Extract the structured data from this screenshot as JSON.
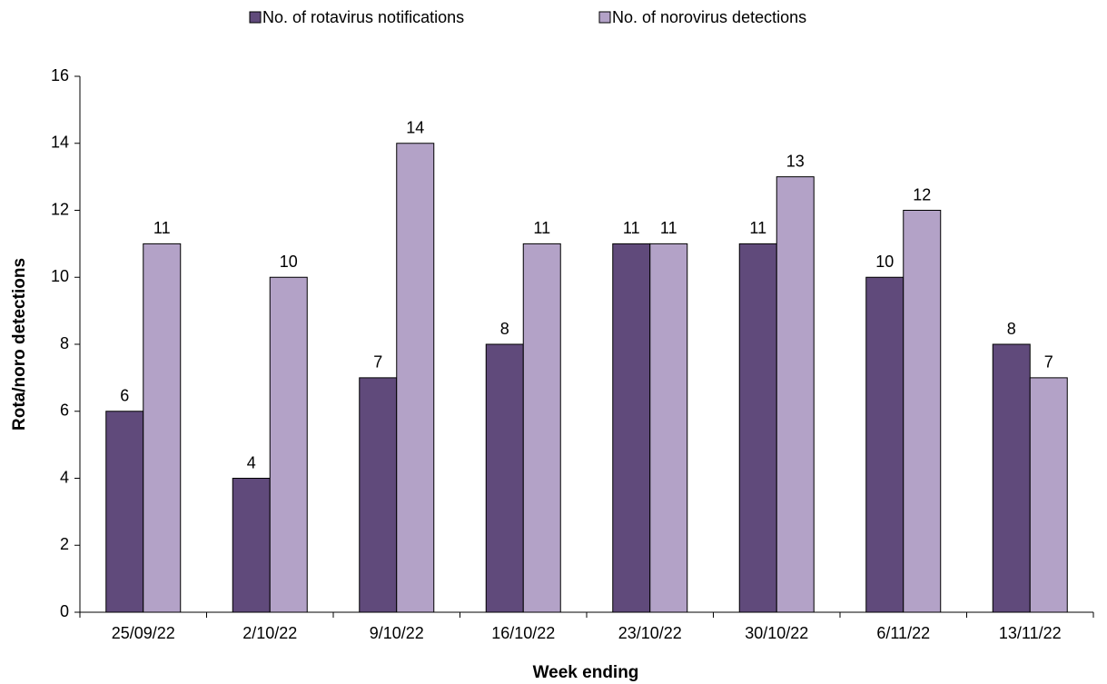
{
  "chart_data": {
    "type": "bar",
    "x_label": "Week ending",
    "y_label": "Rota/noro detections",
    "categories": [
      "25/09/22",
      "2/10/22",
      "9/10/22",
      "16/10/22",
      "23/10/22",
      "30/10/22",
      "6/11/22",
      "13/11/22"
    ],
    "series": [
      {
        "name": "No. of rotavirus notifications",
        "color": "#604a7b",
        "values": [
          6,
          4,
          7,
          8,
          11,
          11,
          10,
          8
        ]
      },
      {
        "name": "No. of norovirus detections",
        "color": "#b3a2c7",
        "values": [
          11,
          10,
          14,
          11,
          11,
          13,
          12,
          7
        ]
      }
    ],
    "ylim": [
      0,
      16
    ],
    "yticks": [
      0,
      2,
      4,
      6,
      8,
      10,
      12,
      14,
      16
    ],
    "grid": false,
    "legend": "top",
    "data_labels": true
  }
}
